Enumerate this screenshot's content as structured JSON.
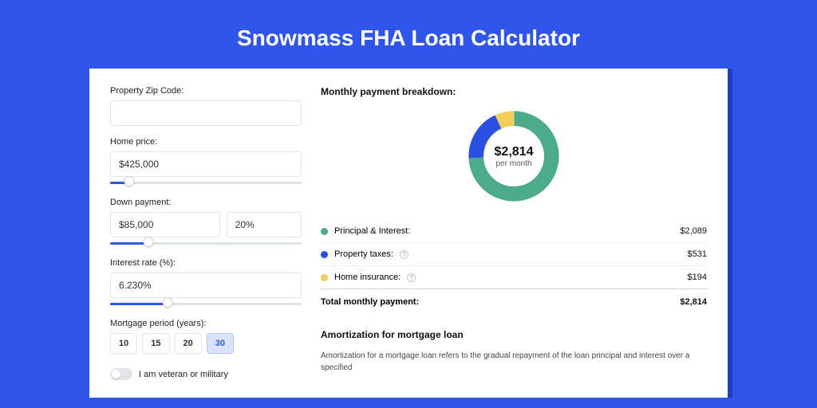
{
  "page": {
    "title": "Snowmass FHA Loan Calculator",
    "background_color": "#2f55eb",
    "shadow_color": "#1f3fbc"
  },
  "form": {
    "zip": {
      "label": "Property Zip Code:",
      "value": ""
    },
    "price": {
      "label": "Home price:",
      "value": "$425,000",
      "slider_pct": 10
    },
    "down": {
      "label": "Down payment:",
      "value": "$85,000",
      "pct": "20%",
      "slider_pct": 20
    },
    "rate": {
      "label": "Interest rate (%):",
      "value": "6.230%",
      "slider_pct": 30
    },
    "period": {
      "label": "Mortgage period (years):",
      "options": [
        "10",
        "15",
        "20",
        "30"
      ],
      "selected_index": 3
    },
    "veteran": {
      "label": "I am veteran or military",
      "on": false
    }
  },
  "breakdown": {
    "title": "Monthly payment breakdown:",
    "donut": {
      "amount": "$2,814",
      "sub": "per month",
      "segments": [
        {
          "label": "Principal & Interest:",
          "value": "$2,089",
          "pct": 74.2,
          "color": "#4bab8b",
          "info": false
        },
        {
          "label": "Property taxes:",
          "value": "$531",
          "pct": 18.9,
          "color": "#2b4fe0",
          "info": true
        },
        {
          "label": "Home insurance:",
          "value": "$194",
          "pct": 6.9,
          "color": "#f1cd5a",
          "info": true
        }
      ]
    },
    "total": {
      "label": "Total monthly payment:",
      "value": "$2,814"
    }
  },
  "amortization": {
    "title": "Amortization for mortgage loan",
    "text": "Amortization for a mortgage loan refers to the gradual repayment of the loan principal and interest over a specified"
  }
}
